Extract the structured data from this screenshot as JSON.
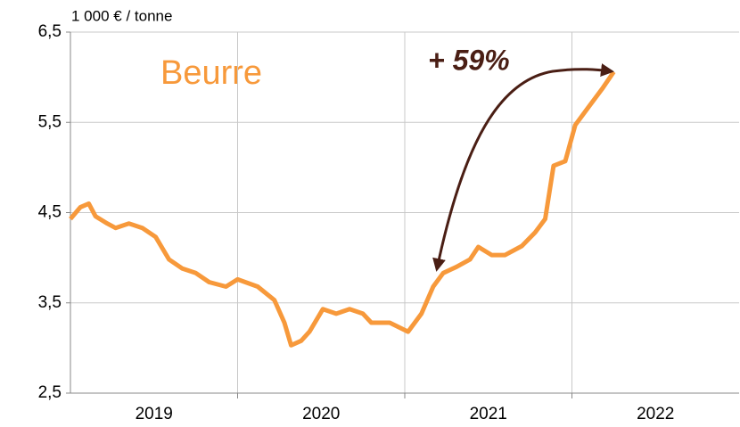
{
  "chart_data": {
    "type": "line",
    "unit_label": "1 000 €  / tonne",
    "series_label": "Beurre",
    "annotation": "+ 59%",
    "categories": [
      "2019",
      "2020",
      "2021",
      "2022"
    ],
    "xlim": [
      2019,
      2023
    ],
    "ylim": [
      2.5,
      6.5
    ],
    "yticks": [
      {
        "value": 2.5,
        "label": "2,5"
      },
      {
        "value": 3.5,
        "label": "3,5"
      },
      {
        "value": 4.5,
        "label": "4,5"
      },
      {
        "value": 5.5,
        "label": "5,5"
      },
      {
        "value": 6.5,
        "label": "6,5"
      }
    ],
    "grid": true,
    "color": "#f7993b",
    "x": [
      2019.0,
      2019.06,
      2019.11,
      2019.15,
      2019.22,
      2019.27,
      2019.35,
      2019.43,
      2019.51,
      2019.59,
      2019.67,
      2019.75,
      2019.83,
      2019.93,
      2020.0,
      2020.12,
      2020.22,
      2020.28,
      2020.32,
      2020.38,
      2020.43,
      2020.51,
      2020.59,
      2020.67,
      2020.75,
      2020.8,
      2020.91,
      2021.02,
      2021.1,
      2021.17,
      2021.23,
      2021.31,
      2021.39,
      2021.44,
      2021.52,
      2021.6,
      2021.7,
      2021.78,
      2021.84,
      2021.89,
      2021.96,
      2022.02,
      2022.1,
      2022.18,
      2022.25
    ],
    "values": [
      4.43,
      4.56,
      4.6,
      4.46,
      4.38,
      4.33,
      4.38,
      4.33,
      4.23,
      3.98,
      3.88,
      3.83,
      3.73,
      3.68,
      3.76,
      3.68,
      3.53,
      3.28,
      3.03,
      3.08,
      3.18,
      3.43,
      3.38,
      3.43,
      3.38,
      3.28,
      3.28,
      3.18,
      3.38,
      3.68,
      3.83,
      3.9,
      3.98,
      4.12,
      4.03,
      4.03,
      4.13,
      4.28,
      4.43,
      5.02,
      5.07,
      5.47,
      5.67,
      5.87,
      6.06
    ]
  }
}
